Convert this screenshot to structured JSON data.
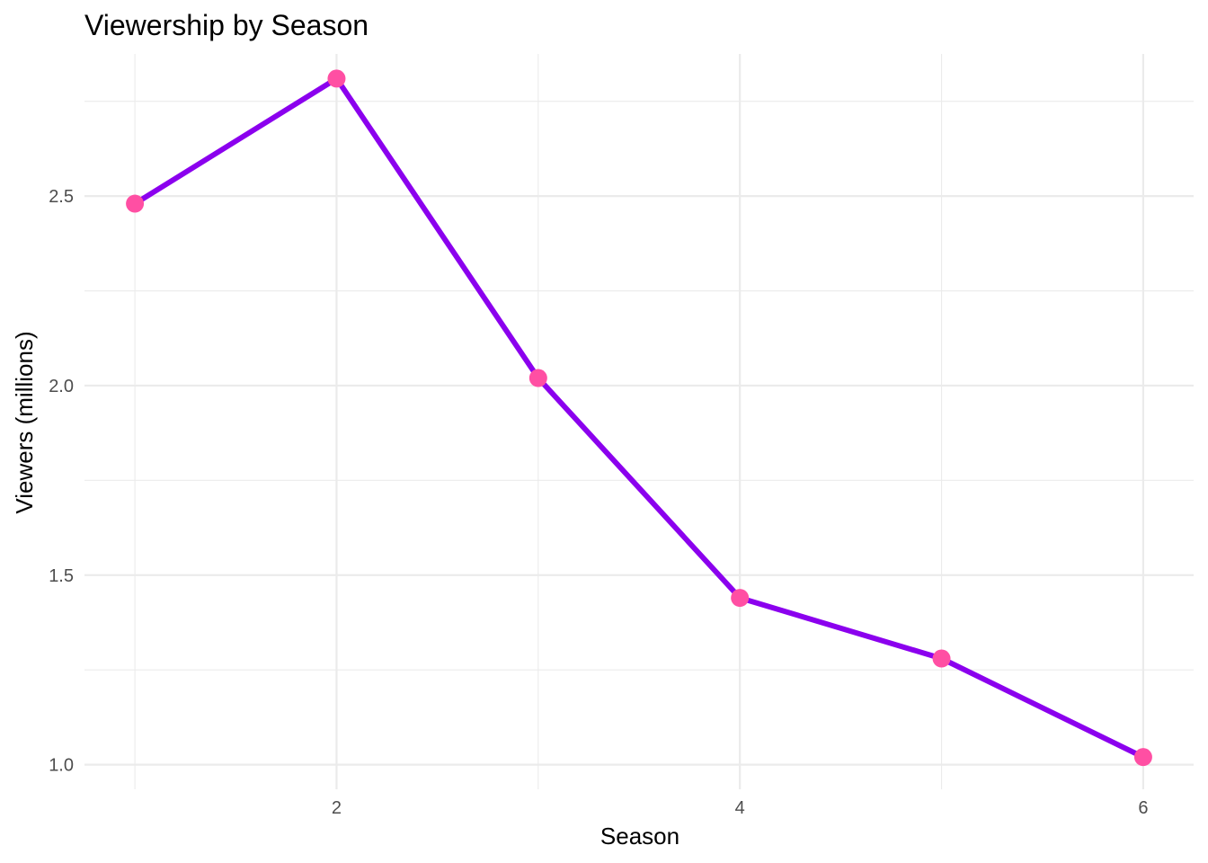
{
  "chart_data": {
    "type": "line",
    "title": "Viewership by Season",
    "xlabel": "Season",
    "ylabel": "Viewers (millions)",
    "x": [
      1,
      2,
      3,
      4,
      5,
      6
    ],
    "series": [
      {
        "values": [
          2.48,
          2.81,
          2.02,
          1.44,
          1.28,
          1.02
        ]
      }
    ],
    "xlim": [
      0.75,
      6.25
    ],
    "ylim": [
      0.935,
      2.875
    ],
    "x_ticks": [
      2,
      4,
      6
    ],
    "x_tick_labels": [
      "2",
      "4",
      "6"
    ],
    "x_minor_ticks": [
      1,
      3,
      5
    ],
    "y_ticks": [
      1.0,
      1.5,
      2.0,
      2.5
    ],
    "y_tick_labels": [
      "1.0",
      "1.5",
      "2.0",
      "2.5"
    ],
    "y_minor_ticks": [
      1.25,
      1.75,
      2.25,
      2.75
    ],
    "grid": true,
    "legend": "none",
    "colors": {
      "line": "#8B00EE",
      "point": "#FF4FA3",
      "grid": "#ebebeb",
      "tick_text": "#4d4d4d"
    }
  }
}
